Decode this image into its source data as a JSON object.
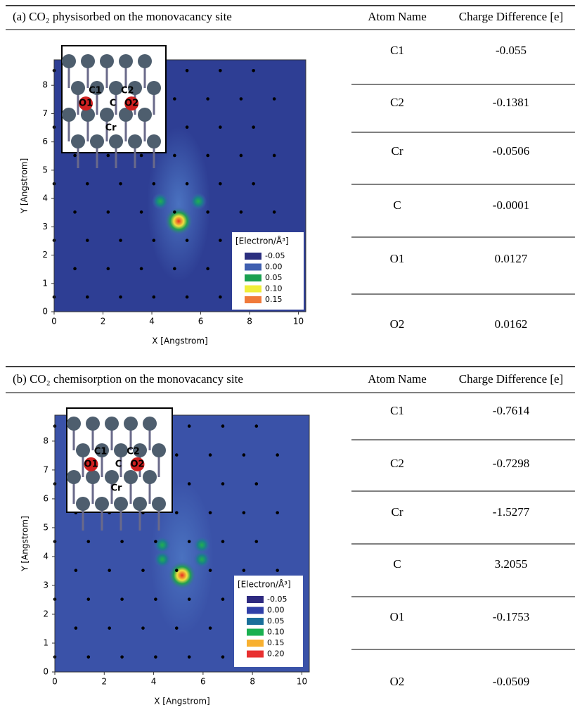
{
  "panels": [
    {
      "title": "(a) CO₂ physisorbed on the monovacancy site",
      "headers": [
        "Atom Name",
        "Charge Difference [e]"
      ],
      "rows": [
        [
          "C1",
          "-0.055"
        ],
        [
          "C2",
          "-0.1381"
        ],
        [
          "Cr",
          "-0.0506"
        ],
        [
          "C",
          "-0.0001"
        ],
        [
          "O1",
          "0.0127"
        ],
        [
          "O2",
          "0.0162"
        ]
      ],
      "plot": {
        "xlabel": "X [Angstrom]",
        "ylabel": "Y [Angstrom]",
        "xlim": [
          0,
          10.3
        ],
        "ylim": [
          0,
          8.9
        ],
        "xticks": [
          0,
          2,
          4,
          6,
          8,
          10
        ],
        "yticks": [
          0,
          1,
          2,
          3,
          4,
          5,
          6,
          7,
          8
        ],
        "legend_title": "[Electron/Å³]",
        "legend": [
          {
            "label": "-0.05",
            "color": "#2b2f7f"
          },
          {
            "label": "0.00",
            "color": "#3f5fb0"
          },
          {
            "label": "0.05",
            "color": "#1aa050"
          },
          {
            "label": "0.10",
            "color": "#f0ee3a"
          },
          {
            "label": "0.15",
            "color": "#f07a3a"
          }
        ],
        "atoms": [
          "C1",
          "C2",
          "O1",
          "C",
          "O2",
          "Cr"
        ]
      }
    },
    {
      "title": "(b) CO₂ chemisorption on the monovacancy site",
      "headers": [
        "Atom Name",
        "Charge Difference [e]"
      ],
      "rows": [
        [
          "C1",
          "-0.7614"
        ],
        [
          "C2",
          "-0.7298"
        ],
        [
          "Cr",
          "-1.5277"
        ],
        [
          "C",
          "3.2055"
        ],
        [
          "O1",
          "-0.1753"
        ],
        [
          "O2",
          "-0.0509"
        ]
      ],
      "plot": {
        "xlabel": "X [Angstrom]",
        "ylabel": "Y [Angstrom]",
        "xlim": [
          0,
          10.3
        ],
        "ylim": [
          0,
          8.9
        ],
        "xticks": [
          0,
          2,
          4,
          6,
          8,
          10
        ],
        "yticks": [
          0,
          1,
          2,
          3,
          4,
          5,
          6,
          7,
          8
        ],
        "legend_title": "[Electron/Å³]",
        "legend": [
          {
            "label": "-0.05",
            "color": "#2e2a80"
          },
          {
            "label": "0.00",
            "color": "#3040a8"
          },
          {
            "label": "0.05",
            "color": "#1a6f9a"
          },
          {
            "label": "0.10",
            "color": "#1ab050"
          },
          {
            "label": "0.15",
            "color": "#f8b030"
          },
          {
            "label": "0.20",
            "color": "#e83030"
          }
        ],
        "atoms": [
          "C1",
          "C2",
          "O1",
          "C",
          "O2",
          "Cr"
        ]
      }
    }
  ]
}
